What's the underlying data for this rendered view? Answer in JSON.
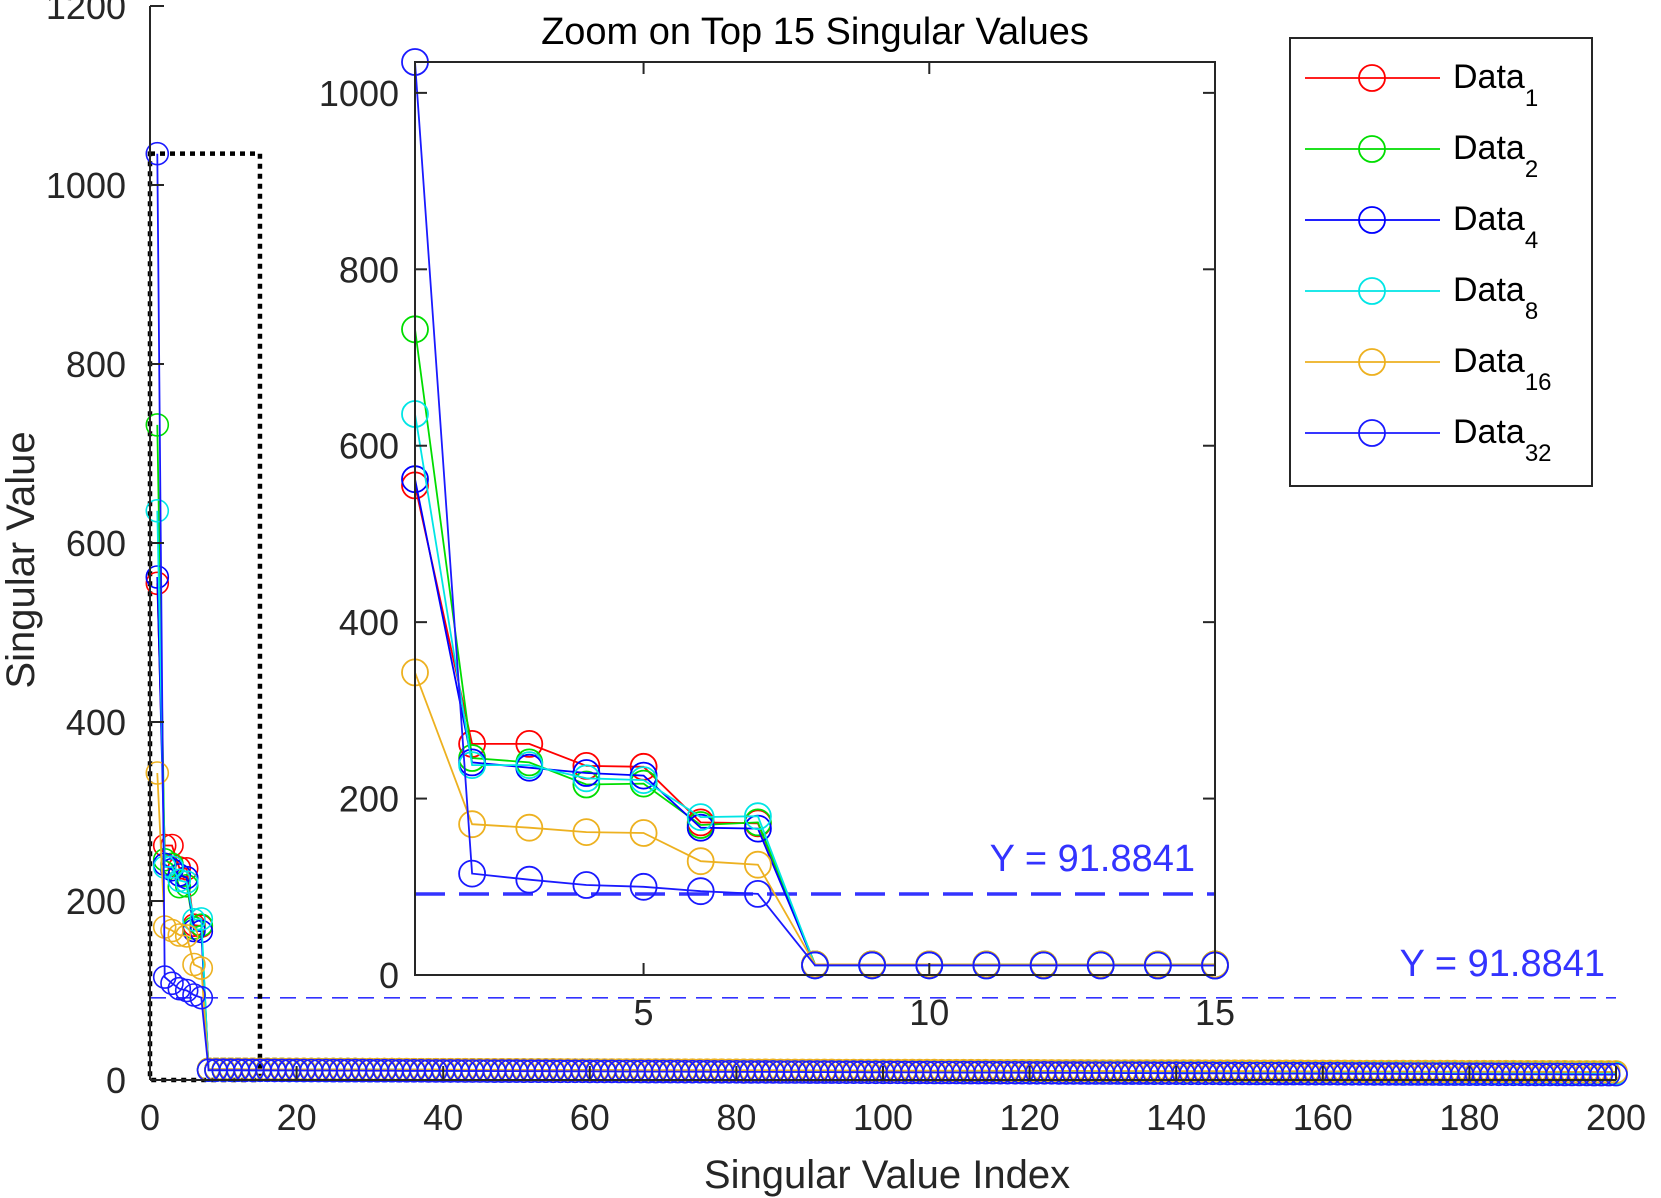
{
  "colors": {
    "red": "#ff0000",
    "green": "#00dd00",
    "blue": "#0000ff",
    "cyan": "#00e5e5",
    "orange": "#edb120",
    "blue2": "#1a1aff",
    "threshold": "#3333ff",
    "axis": "#262626"
  },
  "chart_data": [
    {
      "name": "main",
      "type": "line",
      "title": "",
      "xlabel": "Singular Value Index",
      "ylabel": "Singular Value",
      "xlim": [
        0,
        200
      ],
      "ylim": [
        0,
        1200
      ],
      "x_ticks": [
        0,
        20,
        40,
        60,
        80,
        100,
        120,
        140,
        160,
        180,
        200
      ],
      "x_tick_labels": [
        "0",
        "20",
        "40",
        "60",
        "80",
        "100",
        "120",
        "140",
        "160",
        "180",
        "200"
      ],
      "y_ticks": [
        0,
        200,
        400,
        600,
        800,
        1000,
        1200
      ],
      "y_tick_labels": [
        "0",
        "200",
        "400",
        "600",
        "800",
        "1000",
        "1200"
      ],
      "marker": "circle",
      "x": [
        1,
        2,
        3,
        4,
        5,
        6,
        7
      ],
      "series": [
        {
          "name": "Data_1",
          "color_key": "red",
          "values": [
            555,
            262,
            262,
            237,
            236,
            173,
            172
          ],
          "tail_start": 12,
          "tail_end": 8
        },
        {
          "name": "Data_2",
          "color_key": "green",
          "values": [
            732,
            246,
            241,
            216,
            217,
            170,
            173
          ],
          "tail_start": 12,
          "tail_end": 8
        },
        {
          "name": "Data_4",
          "color_key": "blue",
          "values": [
            562,
            241,
            235,
            229,
            226,
            167,
            166
          ],
          "tail_start": 11,
          "tail_end": 7
        },
        {
          "name": "Data_8",
          "color_key": "cyan",
          "values": [
            636,
            238,
            238,
            223,
            221,
            179,
            180
          ],
          "tail_start": 11,
          "tail_end": 7
        },
        {
          "name": "Data_16",
          "color_key": "orange",
          "values": [
            343,
            171,
            167,
            162,
            161,
            129,
            125
          ],
          "tail_start": 12,
          "tail_end": 9
        },
        {
          "name": "Data_32",
          "color_key": "blue2",
          "values": [
            1035,
            115,
            108,
            102,
            100,
            95,
            91.9
          ],
          "tail_start": 11,
          "tail_end": 6
        }
      ],
      "tail_length": 200,
      "threshold": {
        "value": 91.8841,
        "label": "Y = 91.8841",
        "style": "dashed"
      },
      "zoom_box": {
        "x_range": [
          0,
          15
        ],
        "y_range": [
          0,
          1035
        ],
        "style": "dotted"
      }
    },
    {
      "name": "inset",
      "type": "line",
      "title": "Zoom on Top 15 Singular Values",
      "xlabel": "",
      "ylabel": "",
      "xlim": [
        1,
        15
      ],
      "ylim": [
        0,
        1035
      ],
      "x_ticks": [
        5,
        10,
        15
      ],
      "x_tick_labels": [
        "5",
        "10",
        "15"
      ],
      "y_ticks": [
        0,
        200,
        400,
        600,
        800,
        1000
      ],
      "y_tick_labels": [
        "0",
        "200",
        "400",
        "600",
        "800",
        "1000"
      ],
      "threshold": {
        "value": 91.8841,
        "label": "Y = 91.8841",
        "style": "dashed"
      }
    }
  ],
  "legend": {
    "placement": "top-right",
    "items": [
      {
        "base": "Data",
        "sub": "1",
        "color_key": "red"
      },
      {
        "base": "Data",
        "sub": "2",
        "color_key": "green"
      },
      {
        "base": "Data",
        "sub": "4",
        "color_key": "blue"
      },
      {
        "base": "Data",
        "sub": "8",
        "color_key": "cyan"
      },
      {
        "base": "Data",
        "sub": "16",
        "color_key": "orange"
      },
      {
        "base": "Data",
        "sub": "32",
        "color_key": "blue2"
      }
    ]
  }
}
